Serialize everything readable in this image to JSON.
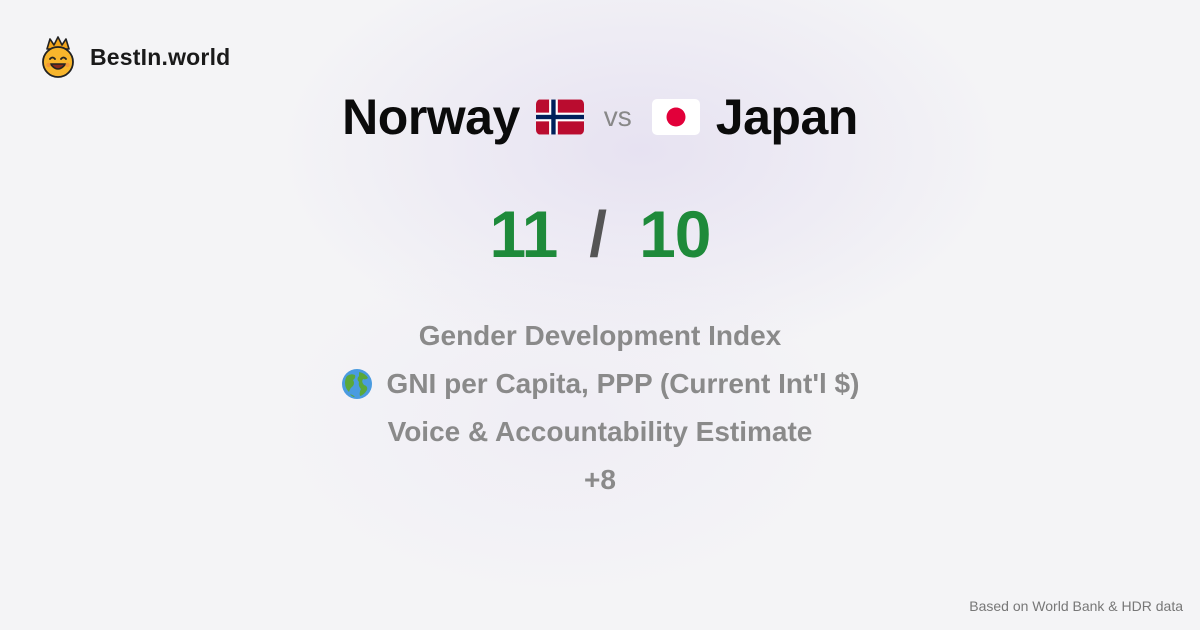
{
  "brand": {
    "name": "BestIn.world",
    "logo_icon": "crowned-smiley-icon"
  },
  "comparison": {
    "left_country": "Norway",
    "left_flag_icon": "norway-flag-icon",
    "separator": "vs",
    "right_country": "Japan",
    "right_flag_icon": "japan-flag-icon"
  },
  "score": {
    "left": "11",
    "divider": "/",
    "right": "10",
    "color": "#1e8a3a"
  },
  "metrics": [
    {
      "label": "Gender Development Index"
    },
    {
      "label": "GNI per Capita, PPP (Current Int'l $)",
      "icon": "globe-icon"
    },
    {
      "label": "Voice & Accountability Estimate"
    },
    {
      "label": "+8"
    }
  ],
  "footer": {
    "source_note": "Based on World Bank & HDR data"
  }
}
